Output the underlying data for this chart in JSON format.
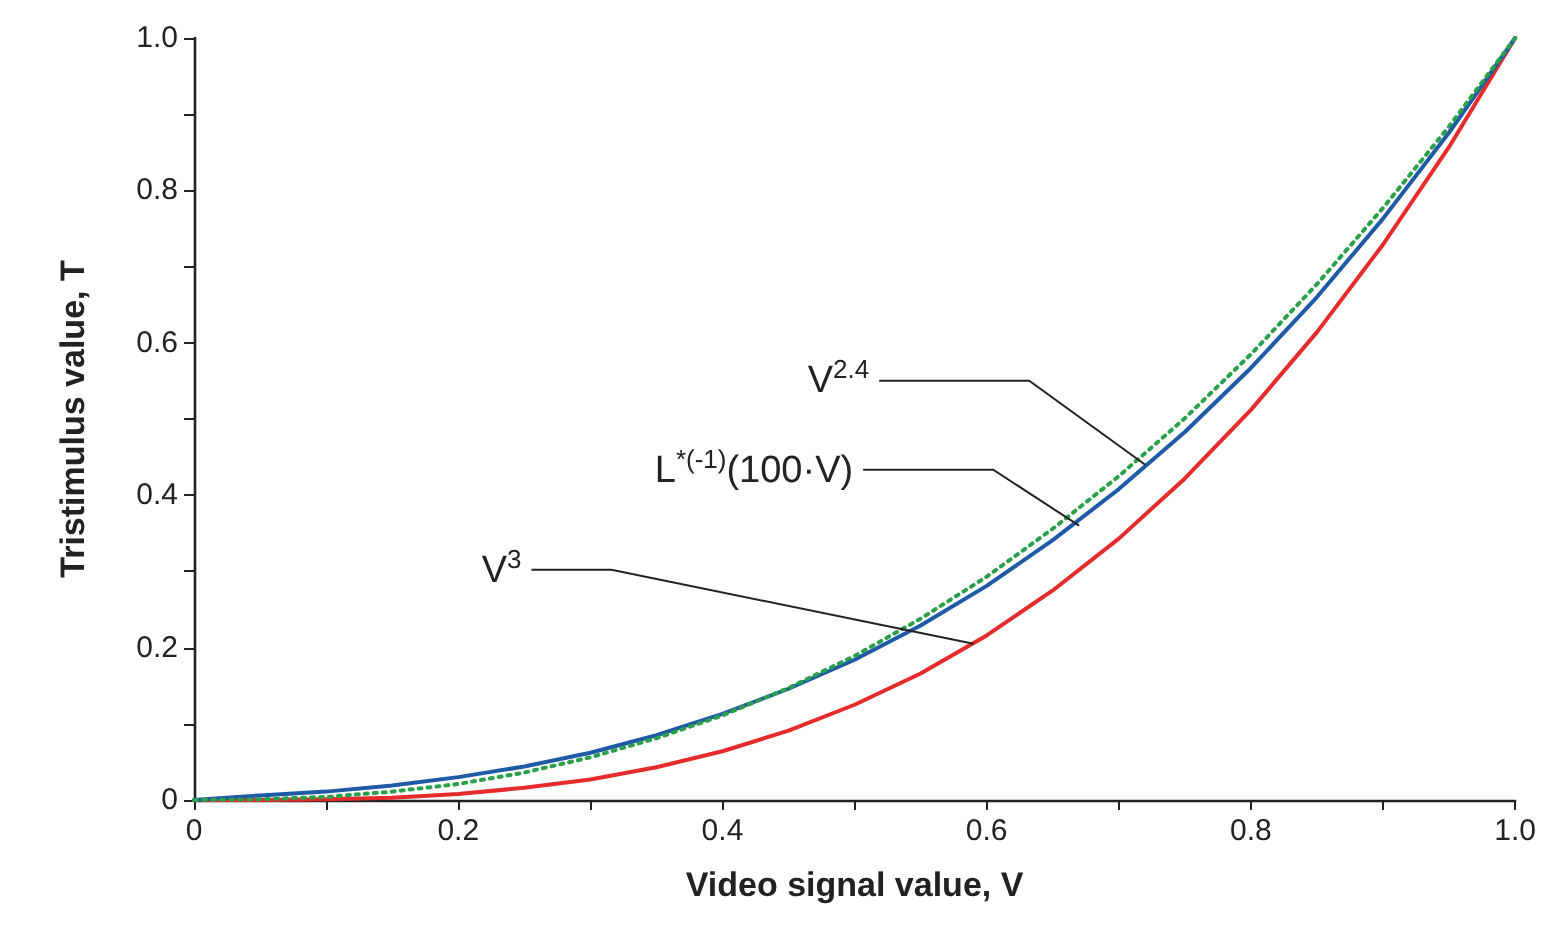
{
  "chart_data": {
    "type": "line",
    "xlabel": "Video signal value, V",
    "ylabel": "Tristimulus value, T",
    "x": [
      0,
      0.05,
      0.1,
      0.15,
      0.2,
      0.25,
      0.3,
      0.35,
      0.4,
      0.45,
      0.5,
      0.55,
      0.6,
      0.65,
      0.7,
      0.75,
      0.8,
      0.85,
      0.9,
      0.95,
      1.0
    ],
    "series": [
      {
        "color": "#e52b2b",
        "values": [
          0,
          0,
          0.001,
          0.003,
          0.008,
          0.016,
          0.027,
          0.043,
          0.064,
          0.091,
          0.125,
          0.166,
          0.216,
          0.275,
          0.343,
          0.422,
          0.512,
          0.614,
          0.729,
          0.857,
          1.0
        ]
      },
      {
        "color": "#1f5aa6",
        "values": [
          0,
          0.006,
          0.011,
          0.019,
          0.03,
          0.044,
          0.062,
          0.085,
          0.113,
          0.146,
          0.184,
          0.229,
          0.281,
          0.341,
          0.408,
          0.483,
          0.567,
          0.66,
          0.763,
          0.876,
          1.0
        ]
      },
      {
        "color": "#2aa04a",
        "line_style": "dotted",
        "values": [
          0,
          0.001,
          0.004,
          0.011,
          0.021,
          0.036,
          0.056,
          0.081,
          0.111,
          0.147,
          0.189,
          0.238,
          0.293,
          0.356,
          0.425,
          0.501,
          0.585,
          0.677,
          0.777,
          0.884,
          1.0
        ]
      }
    ],
    "xlim": [
      0,
      1.0
    ],
    "ylim": [
      0,
      1.0
    ],
    "xticks": [
      0,
      {
        "value": 0.1,
        "label": null
      },
      0.2,
      {
        "value": 0.3,
        "label": null
      },
      0.4,
      {
        "value": 0.5,
        "label": null
      },
      0.6,
      {
        "value": 0.7,
        "label": null
      },
      0.8,
      {
        "value": 0.9,
        "label": null
      },
      {
        "value": 1.0,
        "label": "1.0"
      }
    ],
    "yticks": [
      0,
      {
        "value": 0.1,
        "label": null
      },
      0.2,
      {
        "value": 0.3,
        "label": null
      },
      0.4,
      {
        "value": 0.5,
        "label": null
      },
      0.6,
      {
        "value": 0.7,
        "label": null
      },
      0.8,
      {
        "value": 0.9,
        "label": null
      },
      {
        "value": 1.0,
        "label": "1.0"
      }
    ],
    "grid": false,
    "marker": "none",
    "line_style": "solid",
    "annotations": [
      {
        "text": "V$^{2.4}$",
        "x": 0.72,
        "y": 0.44
      },
      {
        "text": "L$^{*(-1)}$(100·V)",
        "x": 0.67,
        "y": 0.36
      },
      {
        "text": "V$^{3}$",
        "x": 0.59,
        "y": 0.205
      }
    ]
  }
}
